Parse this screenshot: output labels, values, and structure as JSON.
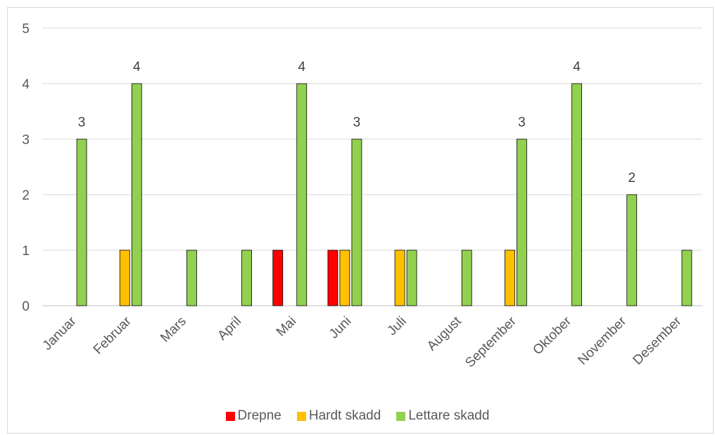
{
  "chart_data": {
    "type": "bar",
    "title": "",
    "xlabel": "",
    "ylabel": "",
    "ylim": [
      0,
      5
    ],
    "yticks": [
      "0",
      "1",
      "2",
      "3",
      "4",
      "5"
    ],
    "grid": true,
    "legend_position": "bottom",
    "categories": [
      "Januar",
      "Februar",
      "Mars",
      "April",
      "Mai",
      "Juni",
      "Juli",
      "August",
      "September",
      "Oktober",
      "November",
      "Desember"
    ],
    "series": [
      {
        "name": "Drepne",
        "color": "#ff0000",
        "values": [
          0,
          0,
          0,
          0,
          1,
          1,
          0,
          0,
          0,
          0,
          0,
          0
        ]
      },
      {
        "name": "Hardt skadd",
        "color": "#ffc000",
        "values": [
          0,
          1,
          0,
          0,
          0,
          1,
          1,
          0,
          1,
          0,
          0,
          0
        ]
      },
      {
        "name": "Lettare skadd",
        "color": "#92d050",
        "values": [
          3,
          4,
          1,
          1,
          4,
          3,
          1,
          1,
          3,
          4,
          2,
          1
        ]
      }
    ],
    "data_labels": {
      "series": "Lettare skadd",
      "values": [
        "3",
        "4",
        "",
        "",
        "4",
        "3",
        "",
        "",
        "3",
        "4",
        "2",
        ""
      ]
    }
  }
}
